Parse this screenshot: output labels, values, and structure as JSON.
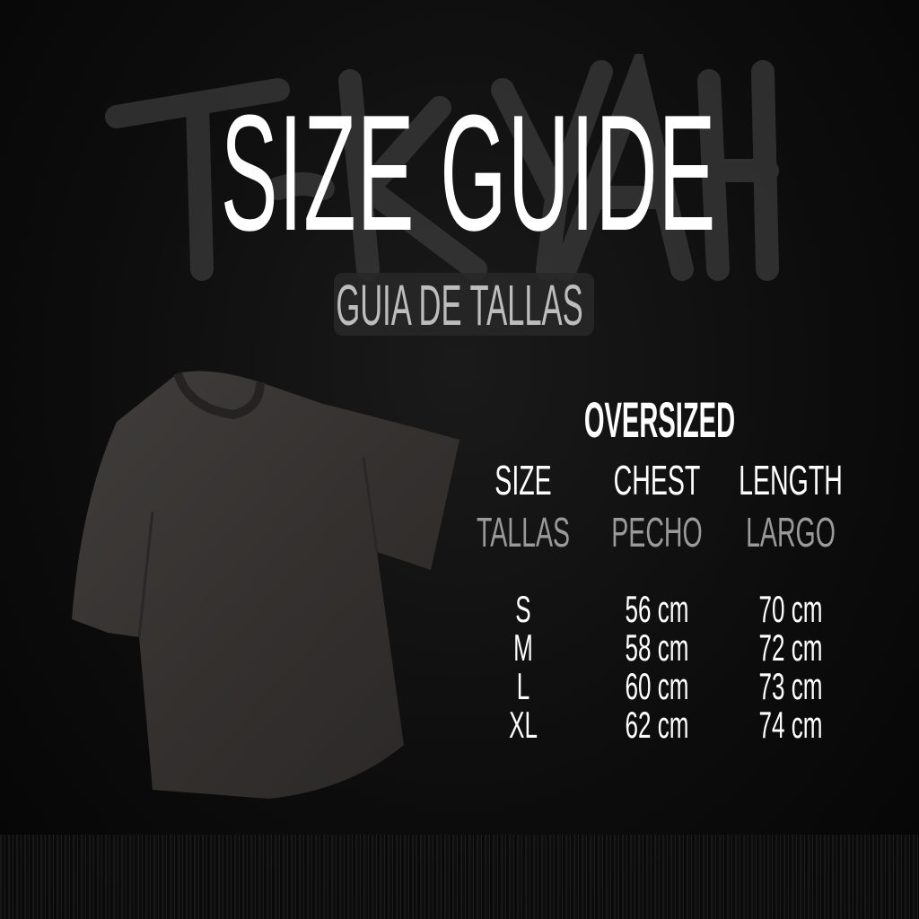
{
  "brand_logo": "TKYAH",
  "title": "SIZE GUIDE",
  "subtitle": "GUIA DE TALLAS",
  "fit": "OVERSIZED",
  "table": {
    "headers": [
      {
        "en": "SIZE",
        "es": "TALLAS"
      },
      {
        "en": "CHEST",
        "es": "PECHO"
      },
      {
        "en": "LENGTH",
        "es": "LARGO"
      }
    ],
    "rows": [
      [
        "S",
        "56 cm",
        "70 cm"
      ],
      [
        "M",
        "58 cm",
        "72 cm"
      ],
      [
        "L",
        "60 cm",
        "73 cm"
      ],
      [
        "XL",
        "62 cm",
        "74 cm"
      ]
    ]
  },
  "colors": {
    "background": "#0b0b0b",
    "text": "#ffffff",
    "muted": "#9a9a9a",
    "shirt": "#3a3836"
  }
}
